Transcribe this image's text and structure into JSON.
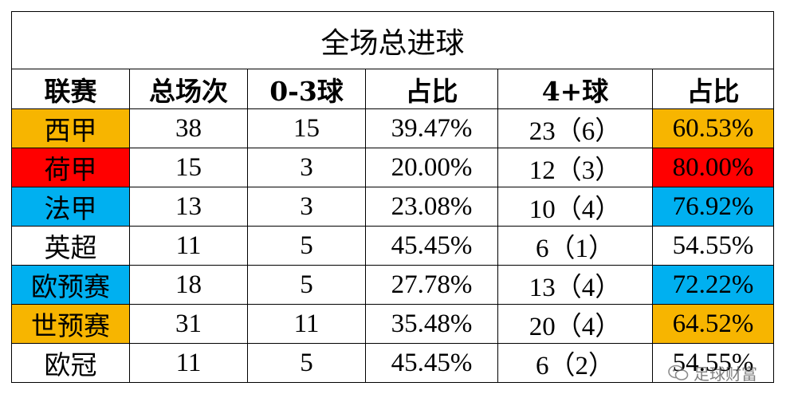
{
  "table": {
    "title": "全场总进球",
    "headers": [
      "联赛",
      "总场次",
      "0-3球",
      "占比",
      "4+球",
      "占比"
    ],
    "rows": [
      {
        "league": "西甲",
        "total": "38",
        "low": "15",
        "low_pct": "39.47%",
        "high": "23（6）",
        "high_pct": "60.53%",
        "highlight": "yellow"
      },
      {
        "league": "荷甲",
        "total": "15",
        "low": "3",
        "low_pct": "20.00%",
        "high": "12（3）",
        "high_pct": "80.00%",
        "highlight": "red"
      },
      {
        "league": "法甲",
        "total": "13",
        "low": "3",
        "low_pct": "23.08%",
        "high": "10（4）",
        "high_pct": "76.92%",
        "highlight": "blue"
      },
      {
        "league": "英超",
        "total": "11",
        "low": "5",
        "low_pct": "45.45%",
        "high": "6（1）",
        "high_pct": "54.55%",
        "highlight": "none"
      },
      {
        "league": "欧预赛",
        "total": "18",
        "low": "5",
        "low_pct": "27.78%",
        "high": "13（4）",
        "high_pct": "72.22%",
        "highlight": "blue"
      },
      {
        "league": "世预赛",
        "total": "31",
        "low": "11",
        "low_pct": "35.48%",
        "high": "20（4）",
        "high_pct": "64.52%",
        "highlight": "yellow"
      },
      {
        "league": "欧冠",
        "total": "11",
        "low": "5",
        "low_pct": "45.45%",
        "high": "6（2）",
        "high_pct": "54.55%",
        "highlight": "none"
      }
    ]
  },
  "colors": {
    "yellow": "#f7b500",
    "red": "#ff0000",
    "blue": "#00b0f0"
  },
  "watermark": {
    "text": "足球财富",
    "icon": "wechat-icon"
  }
}
